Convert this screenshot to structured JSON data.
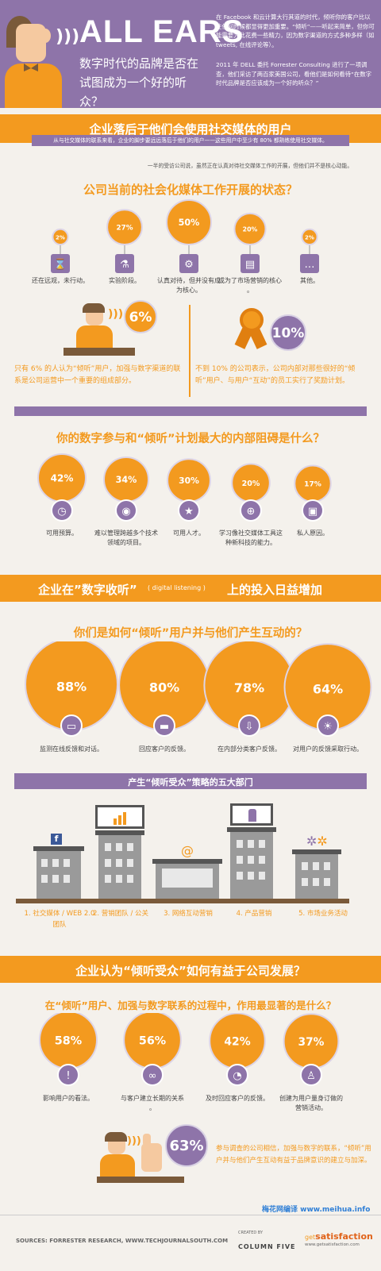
{
  "header": {
    "title": "ALL EARS",
    "subtitle": "数字时代的品牌是否在试图成为一个好的听众？",
    "intro_1": "在 Facebook 和云计算大行其道的时代，倾听你的客户比以往任何时候都显得更加重要。“倾听”——听起来简单，但你可能需要为此花费一些精力，因为数字渠道的方式多种多样（如 tweets, 在线评论等）。",
    "intro_2": "2011 年 DELL 委托 Forrester Consulting 进行了一项调查，他们采访了两百家美国公司，看他们是如何看待“在数字时代品牌是否应该成为一个好的听众？”"
  },
  "section1": {
    "banner": "企业落后于他们会使用社交媒体的用户",
    "note": "从与社交媒体的联系来看，企业的脚步要远远落后于他们的用户——这些用户中至少有 80% 都熟练使用社交媒体。",
    "quote": "一半的受访公司说，虽然正在认真对待社交媒体工作的开展，但他们并不是核心动能。",
    "question": "公司当前的社会化媒体工作开展的状态？",
    "icons": [
      "hourglass-icon",
      "flask-icon",
      "gears-icon",
      "bar-chart-icon",
      "ellipsis-icon"
    ],
    "stat_6_value": "6%",
    "stat_6_text": "只有 6% 的人认为“倾听”用户，加强与数字渠道的联系是公司运营中一个重要的组成部分。",
    "stat_10_value": "10%",
    "stat_10_text": "不到 10% 的公司表示，公司内部对那些很好的“倾听”用户、与用户“互动”的员工实行了奖励计划。"
  },
  "section2": {
    "question": "你的数字参与和“倾听”计划最大的内部阻碍是什么？",
    "icons": [
      "clock-icon",
      "globe-icon",
      "star-icon",
      "globe-grid-icon",
      "lock-icon"
    ]
  },
  "section3": {
    "banner_pre": "企业在”数字收听”",
    "banner_en": "( digital listening )",
    "banner_post": "上的投入日益增加",
    "question": "你们是如何“倾听”用户并与他们产生互动的？",
    "icons": [
      "monitor-icon",
      "truck-icon",
      "inbox-download-icon",
      "lightbulb-icon"
    ],
    "parts_banner": "产生“倾听受众”策略的五大部门",
    "parts": [
      "1. 社交媒体 / WEB 2.0 团队",
      "2. 营销团队 / 公关",
      "3. 网络互动营销",
      "4. 产品营销",
      "5. 市场业务活动"
    ],
    "part_icons": [
      "facebook-icon",
      "chart-icon",
      "at-icon",
      "bottle-icon",
      "gears-icon"
    ]
  },
  "section4": {
    "banner": "企业认为“倾听受众”如何有益于公司发展？",
    "question": "在“倾听”用户、加强与数字联系的过程中，作用最显著的是什么？",
    "icons": [
      "exclamation-icon",
      "link-icon",
      "stopwatch-icon",
      "person-icon"
    ],
    "stat_63_value": "63%",
    "stat_63_text": "参与调查的公司相信，加强与数字的联系，“倾听”用户并与他们产生互动有益于品牌意识的建立与加深。"
  },
  "footer": {
    "credit": "梅花网编译 www.meihua.info",
    "sources": "SOURCES: FORRESTER RESEARCH, WWW.TECHJOURNALSOUTH.COM",
    "created_by": "CREATED BY",
    "column_five": "COLUMN FIVE",
    "satisfaction": "satisfaction",
    "satisfaction_url": "www.getsatisfaction.com",
    "get": "get"
  },
  "chart_data": [
    {
      "type": "bar",
      "title": "公司当前的社会化媒体工作开展的状态？",
      "categories": [
        "还在远观，未行动。",
        "实验阶段。",
        "认真对待，但并没有成为核心。",
        "成为了市场营销的核心。",
        "其他。"
      ],
      "values": [
        2,
        27,
        50,
        20,
        2
      ],
      "labels": [
        "2%",
        "27%",
        "50%",
        "20%",
        "2%"
      ]
    },
    {
      "type": "bar",
      "title": "你的数字参与和“倾听”计划最大的内部阻碍是什么？",
      "categories": [
        "可用预算。",
        "难以管理跨越多个技术领域的项目。",
        "可用人才。",
        "学习像社交媒体工具这种新科技的能力。",
        "私人原因。"
      ],
      "values": [
        42,
        34,
        30,
        20,
        17
      ],
      "labels": [
        "42%",
        "34%",
        "30%",
        "20%",
        "17%"
      ]
    },
    {
      "type": "bar",
      "title": "你们是如何“倾听”用户并与他们产生互动的？",
      "categories": [
        "监测在线反馈和对话。",
        "回应客户的反馈。",
        "在内部分类客户反馈。",
        "对用户的反馈采取行动。"
      ],
      "values": [
        88,
        80,
        78,
        64
      ],
      "labels": [
        "88%",
        "80%",
        "78%",
        "64%"
      ]
    },
    {
      "type": "bar",
      "title": "在“倾听”用户、加强与数字联系的过程中，作用最显著的是什么？",
      "categories": [
        "影响用户的看法。",
        "与客户建立长期的关系。",
        "及时回应客户的反馈。",
        "创建为用户量身订做的营销活动。"
      ],
      "values": [
        58,
        56,
        42,
        37
      ],
      "labels": [
        "58%",
        "56%",
        "42%",
        "37%"
      ]
    }
  ]
}
